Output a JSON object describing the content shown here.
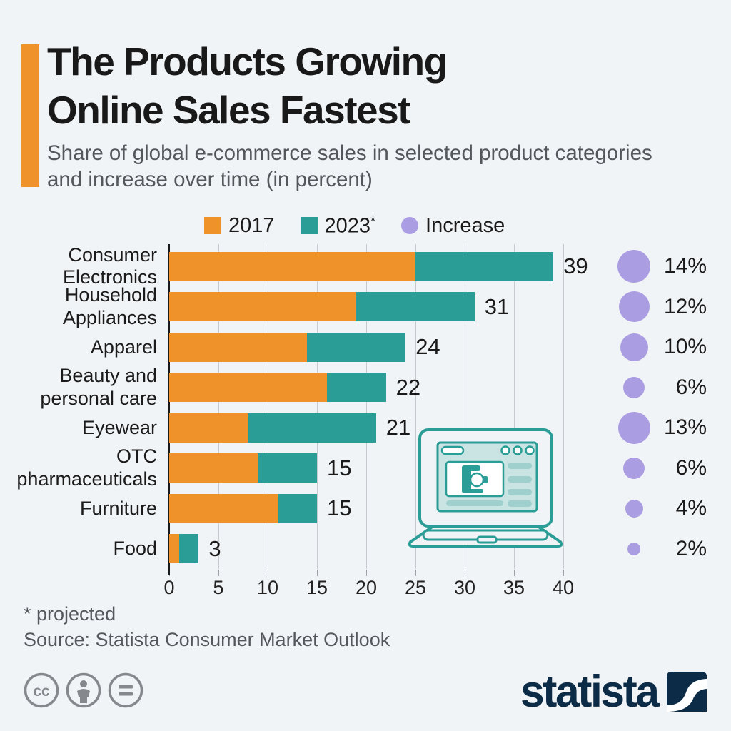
{
  "header": {
    "title_line1": "The Products Growing",
    "title_line2": "Online Sales Fastest",
    "subtitle": "Share of global e-commerce sales in selected product categories and increase over time (in percent)"
  },
  "legend": {
    "items": [
      {
        "label": "2017",
        "swatch": "orange-square"
      },
      {
        "label": "2023",
        "suffix": "*",
        "swatch": "teal-square"
      },
      {
        "label": "Increase",
        "swatch": "purple-circle"
      }
    ]
  },
  "chart_data": {
    "type": "bar",
    "orientation": "horizontal",
    "title": "The Products Growing Online Sales Fastest",
    "xlabel": "",
    "ylabel": "",
    "grid": true,
    "legend_position": "top",
    "xlim": [
      0,
      40
    ],
    "x_ticks": [
      0,
      5,
      10,
      15,
      20,
      25,
      30,
      35,
      40
    ],
    "categories": [
      "Consumer Electronics",
      "Household Appliances",
      "Apparel",
      "Beauty and personal care",
      "Eyewear",
      "OTC pharmaceuticals",
      "Furniture",
      "Food"
    ],
    "category_lines": [
      [
        "Consumer",
        "Electronics"
      ],
      [
        "Household",
        "Appliances"
      ],
      [
        "Apparel"
      ],
      [
        "Beauty and",
        "personal care"
      ],
      [
        "Eyewear"
      ],
      [
        "OTC",
        "pharmaceuticals"
      ],
      [
        "Furniture"
      ],
      [
        "Food"
      ]
    ],
    "series": [
      {
        "name": "2017",
        "color": "#EF9229",
        "values": [
          25,
          19,
          14,
          16,
          8,
          9,
          11,
          1
        ]
      },
      {
        "name": "2023*",
        "color": "#2A9D96",
        "values": [
          39,
          31,
          24,
          22,
          21,
          15,
          15,
          3
        ]
      }
    ],
    "bar_total_labels": [
      "39",
      "31",
      "24",
      "22",
      "21",
      "15",
      "15",
      "3"
    ],
    "increase": {
      "name": "Increase",
      "color": "#AB9DE2",
      "values": [
        14,
        12,
        10,
        6,
        13,
        6,
        4,
        2
      ],
      "labels": [
        "14%",
        "12%",
        "10%",
        "6%",
        "13%",
        "6%",
        "4%",
        "2%"
      ]
    }
  },
  "footer": {
    "footnote": "* projected",
    "source": "Source: Statista Consumer Market Outlook",
    "brand": "statista",
    "license_icons": [
      "cc-icon",
      "attribution-person-icon",
      "equals-icon"
    ]
  },
  "colors": {
    "background": "#F1F4F7",
    "accent_orange": "#EF9229",
    "teal": "#2A9D96",
    "purple": "#AB9DE2",
    "subtitle_gray": "#54585C",
    "brand_navy": "#0C2B46",
    "gridline": "#C7CBD1"
  }
}
